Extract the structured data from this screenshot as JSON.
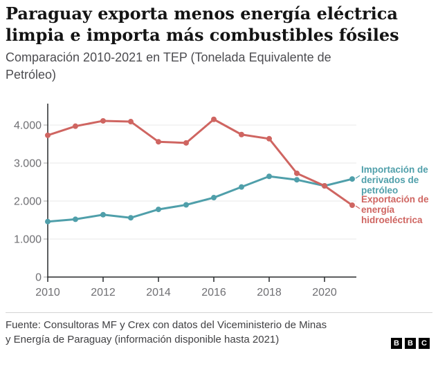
{
  "header": {
    "title": "Paraguay exporta menos energía eléctrica limpia e importa más combustibles fósiles",
    "subtitle": "Comparación 2010-2021 en TEP (Tonelada Equivalente de Petróleo)"
  },
  "chart_data": {
    "type": "line",
    "title": "Comparación 2010-2021 en TEP (Tonelada Equivalente de Petróleo)",
    "x": [
      2010,
      2011,
      2012,
      2013,
      2014,
      2015,
      2016,
      2017,
      2018,
      2019,
      2020,
      2021
    ],
    "series": [
      {
        "name": "Importación de derivados de petróleo",
        "color": "#4f9faa",
        "values": [
          1460,
          1520,
          1640,
          1560,
          1780,
          1900,
          2090,
          2370,
          2650,
          2560,
          2400,
          2580
        ]
      },
      {
        "name": "Exportación de energía hidroeléctrica",
        "color": "#cf6561",
        "values": [
          3730,
          3970,
          4110,
          4090,
          3560,
          3530,
          4150,
          3750,
          3640,
          2730,
          2400,
          1890
        ]
      }
    ],
    "ylim": [
      0,
      4560
    ],
    "yticks": [
      0,
      1000,
      2000,
      3000,
      4000
    ],
    "ytick_labels": [
      "0",
      "1.000",
      "2.000",
      "3.000",
      "4.000"
    ],
    "xticks": [
      2010,
      2012,
      2014,
      2016,
      2018,
      2020
    ],
    "grid": true,
    "legend_position": "right"
  },
  "legend": {
    "import_label": "Importación de derivados de petróleo",
    "export_label": "Exportación de energía hidroeléctrica"
  },
  "footer": {
    "source": "Fuente: Consultoras MF y Crex con datos del Viceministerio de Minas y Energía de Paraguay (información disponible hasta 2021)",
    "logo_letters": [
      "B",
      "B",
      "C"
    ]
  },
  "colors": {
    "import_line": "#4f9faa",
    "export_line": "#cf6561",
    "axis": "#26282a",
    "gridline": "#e8e8e8",
    "tick_label": "#6f6f73"
  }
}
